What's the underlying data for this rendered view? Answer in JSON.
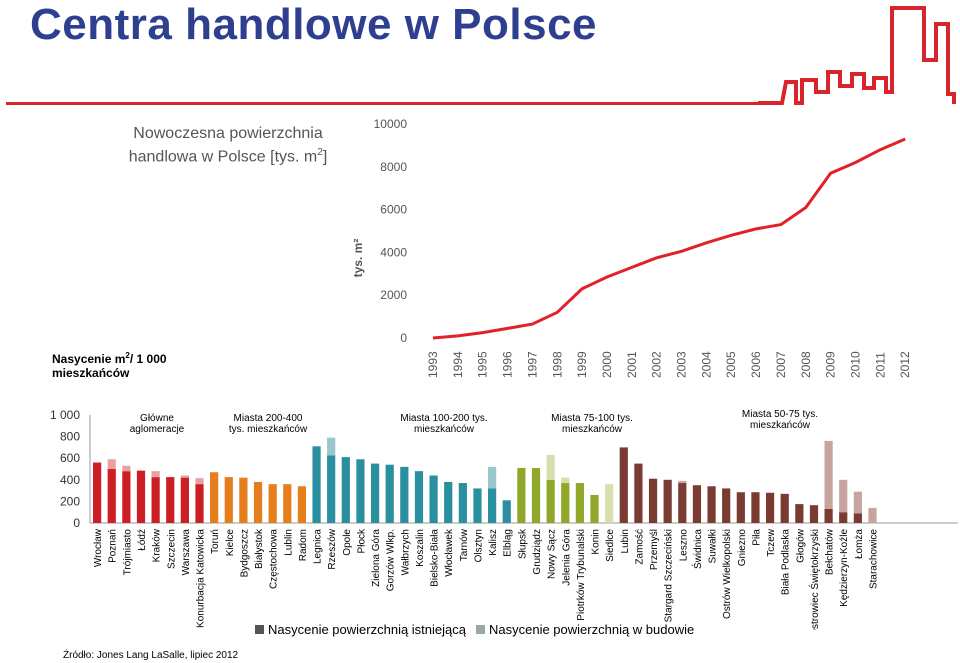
{
  "header": {
    "title": "Centra handlowe w Polsce",
    "accent_color": "#d9242b",
    "title_color": "#2e3f8f"
  },
  "subtitle": {
    "line1": "Nowoczesna powierzchnia",
    "line2_prefix": "handlowa w Polsce [tys. m",
    "line2_sup": "2",
    "line2_suffix": "]"
  },
  "saturation_label": {
    "line1_prefix": "Nasycenie m",
    "line1_sup": "2",
    "line1_suffix": "/ 1 000",
    "line2": "mieszkańców"
  },
  "legend": {
    "existing": "Nasycenie powierzchnią istniejącą",
    "building": "Nasycenie powierzchnią w budowie"
  },
  "source": "Źródło: Jones Lang LaSalle, lipiec 2012",
  "chart_data": [
    {
      "type": "line",
      "ylabel": "tys. m²",
      "ylim": [
        0,
        10000
      ],
      "yticks": [
        0,
        2000,
        4000,
        6000,
        8000,
        10000
      ],
      "grid": false,
      "color": "#e02228",
      "x": [
        "1993",
        "1994",
        "1995",
        "1996",
        "1997",
        "1998",
        "1999",
        "2000",
        "2001",
        "2002",
        "2003",
        "2004",
        "2005",
        "2006",
        "2007",
        "2008",
        "2009",
        "2010",
        "2011",
        "2012"
      ],
      "values": [
        0,
        100,
        250,
        450,
        650,
        1200,
        2300,
        2850,
        3300,
        3750,
        4050,
        4450,
        4800,
        5100,
        5300,
        6100,
        7700,
        8200,
        8800,
        9300
      ]
    },
    {
      "type": "bar",
      "stacked": true,
      "ylim": [
        0,
        1000
      ],
      "yticks": [
        "0",
        "200",
        "400",
        "600",
        "800",
        "1 000"
      ],
      "series_names": [
        "Nasycenie powierzchnią istniejącą",
        "Nasycenie powierzchnią w budowie"
      ],
      "groups": [
        {
          "label_lines": [
            "Główne",
            "aglomeracje"
          ],
          "color": "#cc1f25",
          "light": "#e8a0a0",
          "items": [
            [
              "Wrocław",
              560,
              0
            ],
            [
              "Poznań",
              500,
              90
            ],
            [
              "Trójmiasto",
              480,
              50
            ],
            [
              "Łódź",
              485,
              0
            ],
            [
              "Kraków",
              425,
              55
            ],
            [
              "Szczecin",
              425,
              0
            ],
            [
              "Warszawa",
              420,
              20
            ],
            [
              "Konurbacja Katowicka",
              360,
              55
            ]
          ]
        },
        {
          "label_lines": [
            "Miasta 200-400",
            "tys. mieszkańców"
          ],
          "color": "#e67e1e",
          "light": "#f4c08a",
          "items": [
            [
              "Toruń",
              470,
              0
            ],
            [
              "Kielce",
              425,
              0
            ],
            [
              "Bydgoszcz",
              420,
              0
            ],
            [
              "Białystok",
              380,
              0
            ],
            [
              "Częstochowa",
              360,
              0
            ],
            [
              "Lublin",
              360,
              0
            ],
            [
              "Radom",
              340,
              0
            ]
          ]
        },
        {
          "label_lines": [
            "Miasta 100-200 tys.",
            "mieszkańców"
          ],
          "color": "#2a8f9e",
          "light": "#9cc6cd",
          "items": [
            [
              "Legnica",
              710,
              0
            ],
            [
              "Rzeszów",
              625,
              165
            ],
            [
              "Opole",
              610,
              0
            ],
            [
              "Płock",
              590,
              0
            ],
            [
              "Zielona Góra",
              550,
              0
            ],
            [
              "Gorzów Wlkp.",
              540,
              0
            ],
            [
              "Wałbrzych",
              520,
              0
            ],
            [
              "Koszalin",
              480,
              0
            ],
            [
              "Bielsko-Biała",
              440,
              0
            ],
            [
              "Włocławek",
              380,
              0
            ],
            [
              "Tarnów",
              370,
              0
            ],
            [
              "Olsztyn",
              320,
              0
            ],
            [
              "Kalisz",
              320,
              200
            ],
            [
              "Elbląg",
              210,
              0
            ]
          ]
        },
        {
          "label_lines": [
            "Miasta 75-100 tys.",
            "mieszkańców"
          ],
          "color": "#8fa82a",
          "light": "#d7dfae",
          "items": [
            [
              "Słupsk",
              510,
              0
            ],
            [
              "Grudziądz",
              510,
              0
            ],
            [
              "Nowy Sącz",
              400,
              230
            ],
            [
              "Jelenia Góra",
              370,
              50
            ],
            [
              "Piotrków Trybunalski",
              370,
              0
            ],
            [
              "Konin",
              260,
              0
            ],
            [
              "Siedlce",
              0,
              360
            ]
          ]
        },
        {
          "label_lines": [
            "Miasta 50-75 tys.",
            "mieszkańców"
          ],
          "color": "#7a3c32",
          "light": "#c7a59f",
          "items": [
            [
              "Lubin",
              700,
              0
            ],
            [
              "Zamość",
              550,
              0
            ],
            [
              "Przemyśl",
              410,
              0
            ],
            [
              "Stargard Szczeciński",
              400,
              0
            ],
            [
              "Leszno",
              370,
              20
            ],
            [
              "Świdnica",
              350,
              0
            ],
            [
              "Suwałki",
              340,
              0
            ],
            [
              "Ostrów Wielkopolski",
              320,
              0
            ],
            [
              "Gniezno",
              285,
              0
            ],
            [
              "Piła",
              285,
              0
            ],
            [
              "Tczew",
              280,
              0
            ],
            [
              "Biała Podlaska",
              270,
              0
            ],
            [
              "Głogów",
              175,
              0
            ],
            [
              "Ostrowiec Świętokrzyski",
              165,
              0
            ],
            [
              "Bełchatów",
              130,
              630
            ],
            [
              "Kędzierzyn-Koźle",
              100,
              300
            ],
            [
              "Łomża",
              90,
              200
            ],
            [
              "Starachowice",
              0,
              140
            ]
          ]
        }
      ]
    }
  ]
}
